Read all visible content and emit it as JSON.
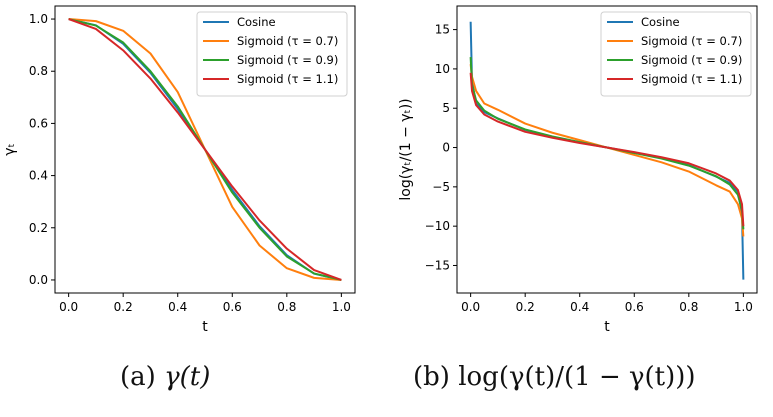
{
  "chart_data": [
    {
      "type": "line",
      "title": "",
      "xlabel": "t",
      "ylabel": "γ_t",
      "xlim": [
        -0.05,
        1.05
      ],
      "ylim": [
        -0.05,
        1.05
      ],
      "xticks": [
        0.0,
        0.2,
        0.4,
        0.6,
        0.8,
        1.0
      ],
      "xtick_labels": [
        "0.0",
        "0.2",
        "0.4",
        "0.6",
        "0.8",
        "1.0"
      ],
      "yticks": [
        0.0,
        0.2,
        0.4,
        0.6,
        0.8,
        1.0
      ],
      "ytick_labels": [
        "0.0",
        "0.2",
        "0.4",
        "0.6",
        "0.8",
        "1.0"
      ],
      "grid": false,
      "legend_position": "top-right",
      "x": [
        0.0,
        0.1,
        0.2,
        0.3,
        0.4,
        0.5,
        0.6,
        0.7,
        0.8,
        0.9,
        1.0
      ],
      "series": [
        {
          "name": "Cosine",
          "color": "#1f77b4",
          "values": [
            1.0,
            0.976,
            0.905,
            0.794,
            0.655,
            0.5,
            0.345,
            0.206,
            0.095,
            0.024,
            0.0
          ]
        },
        {
          "name": "Sigmoid (τ = 0.7)",
          "color": "#ff7f0e",
          "values": [
            1.0,
            0.992,
            0.955,
            0.868,
            0.72,
            0.5,
            0.28,
            0.132,
            0.045,
            0.008,
            0.0
          ]
        },
        {
          "name": "Sigmoid (τ = 0.9)",
          "color": "#2ca02c",
          "values": [
            1.0,
            0.975,
            0.91,
            0.8,
            0.665,
            0.5,
            0.335,
            0.2,
            0.09,
            0.025,
            0.0
          ]
        },
        {
          "name": "Sigmoid (τ = 1.1)",
          "color": "#d62728",
          "values": [
            1.0,
            0.962,
            0.88,
            0.772,
            0.642,
            0.5,
            0.358,
            0.228,
            0.12,
            0.038,
            0.0
          ]
        }
      ]
    },
    {
      "type": "line",
      "title": "",
      "xlabel": "t",
      "ylabel": "log(γ_t/(1 − γ_t))",
      "xlim": [
        -0.05,
        1.05
      ],
      "ylim": [
        -18.5,
        18.0
      ],
      "xticks": [
        0.0,
        0.2,
        0.4,
        0.6,
        0.8,
        1.0
      ],
      "xtick_labels": [
        "0.0",
        "0.2",
        "0.4",
        "0.6",
        "0.8",
        "1.0"
      ],
      "yticks": [
        15,
        10,
        5,
        0,
        -5,
        -10,
        -15
      ],
      "ytick_labels": [
        "15",
        "10",
        "5",
        "0",
        "−5",
        "−10",
        "−15"
      ],
      "grid": false,
      "legend_position": "top-right",
      "x": [
        0.0,
        0.005,
        0.02,
        0.05,
        0.1,
        0.2,
        0.3,
        0.4,
        0.5,
        0.6,
        0.7,
        0.8,
        0.9,
        0.95,
        0.98,
        0.995,
        1.0
      ],
      "series": [
        {
          "name": "Cosine",
          "color": "#1f77b4",
          "values": [
            16.0,
            8.4,
            5.6,
            4.5,
            3.7,
            2.25,
            1.35,
            0.64,
            0.0,
            -0.64,
            -1.35,
            -2.25,
            -3.7,
            -4.5,
            -5.6,
            -8.4,
            -16.8
          ]
        },
        {
          "name": "Sigmoid (τ = 0.7)",
          "color": "#ff7f0e",
          "values": [
            10.6,
            9.0,
            7.2,
            5.6,
            4.8,
            3.05,
            1.88,
            0.94,
            0.0,
            -0.94,
            -1.88,
            -3.05,
            -4.8,
            -5.6,
            -7.2,
            -9.0,
            -11.3
          ]
        },
        {
          "name": "Sigmoid (τ = 0.9)",
          "color": "#2ca02c",
          "values": [
            11.5,
            8.0,
            6.0,
            4.7,
            3.65,
            2.3,
            1.4,
            0.69,
            0.0,
            -0.69,
            -1.4,
            -2.3,
            -3.65,
            -4.7,
            -6.0,
            -8.0,
            -10.4
          ]
        },
        {
          "name": "Sigmoid (τ = 1.1)",
          "color": "#d62728",
          "values": [
            9.5,
            7.2,
            5.4,
            4.2,
            3.3,
            2.0,
            1.24,
            0.58,
            0.0,
            -0.58,
            -1.24,
            -2.0,
            -3.3,
            -4.2,
            -5.4,
            -7.2,
            -10.0
          ]
        }
      ]
    }
  ],
  "captions": {
    "a": {
      "label": "(a)",
      "expr": "γ(t)"
    },
    "b": {
      "label": "(b)",
      "expr": "log(γ(t)/(1 − γ(t)))"
    }
  }
}
